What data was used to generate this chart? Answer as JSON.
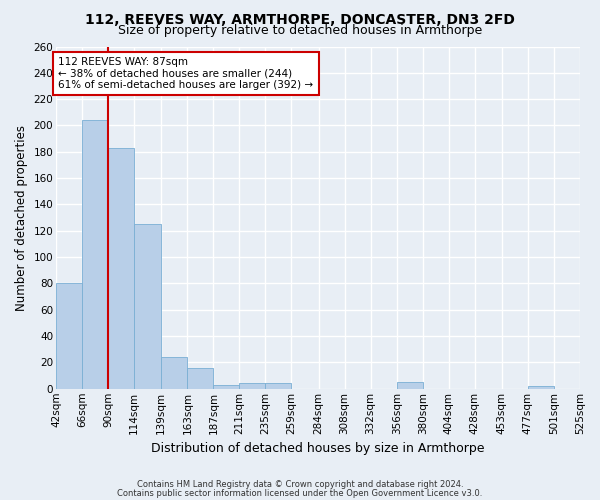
{
  "title": "112, REEVES WAY, ARMTHORPE, DONCASTER, DN3 2FD",
  "subtitle": "Size of property relative to detached houses in Armthorpe",
  "xlabel": "Distribution of detached houses by size in Armthorpe",
  "ylabel": "Number of detached properties",
  "footer_line1": "Contains HM Land Registry data © Crown copyright and database right 2024.",
  "footer_line2": "Contains public sector information licensed under the Open Government Licence v3.0.",
  "bin_edges": [
    42,
    66,
    90,
    114,
    139,
    163,
    187,
    211,
    235,
    259,
    284,
    308,
    332,
    356,
    380,
    404,
    428,
    453,
    477,
    501,
    525
  ],
  "bin_labels": [
    "42sqm",
    "66sqm",
    "90sqm",
    "114sqm",
    "139sqm",
    "163sqm",
    "187sqm",
    "211sqm",
    "235sqm",
    "259sqm",
    "284sqm",
    "308sqm",
    "332sqm",
    "356sqm",
    "380sqm",
    "404sqm",
    "428sqm",
    "453sqm",
    "477sqm",
    "501sqm",
    "525sqm"
  ],
  "bar_heights": [
    80,
    204,
    183,
    125,
    24,
    16,
    3,
    4,
    4,
    0,
    0,
    0,
    0,
    5,
    0,
    0,
    0,
    0,
    2,
    0
  ],
  "bar_color": "#b8cfe8",
  "bar_edge_color": "#7aafd4",
  "vline_x": 90,
  "vline_color": "#cc0000",
  "annotation_line1": "112 REEVES WAY: 87sqm",
  "annotation_line2": "← 38% of detached houses are smaller (244)",
  "annotation_line3": "61% of semi-detached houses are larger (392) →",
  "annotation_box_color": "#ffffff",
  "annotation_box_edge_color": "#cc0000",
  "ylim": [
    0,
    260
  ],
  "background_color": "#e8eef5",
  "axes_background": "#e8eef5",
  "grid_color": "#ffffff",
  "title_fontsize": 10,
  "subtitle_fontsize": 9,
  "tick_fontsize": 7.5,
  "ylabel_fontsize": 8.5,
  "xlabel_fontsize": 9,
  "annotation_fontsize": 7.5
}
